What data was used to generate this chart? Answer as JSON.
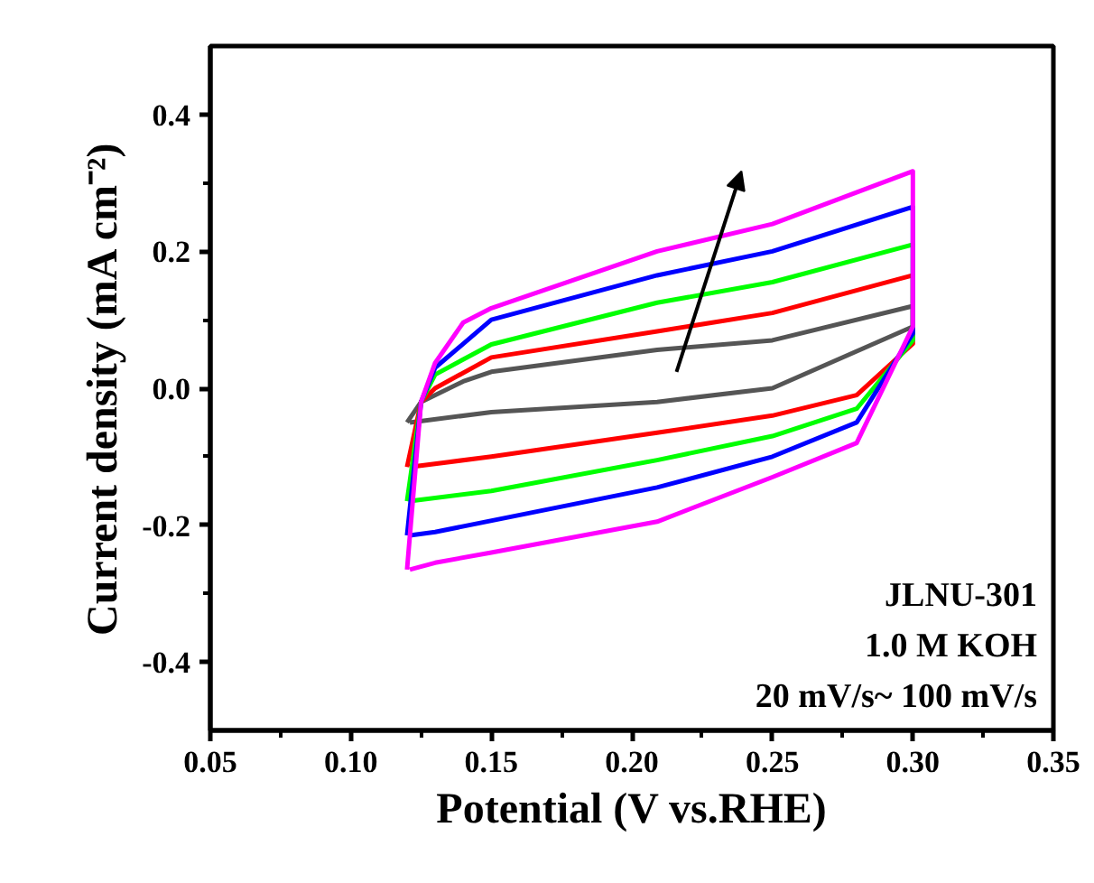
{
  "chart_data": {
    "type": "line",
    "xlabel": "Potential (V vs.RHE)",
    "ylabel": "Current density (mA cm⁻²)",
    "xlim": [
      0.05,
      0.35
    ],
    "ylim": [
      -0.5,
      0.5
    ],
    "xticks": [
      {
        "value": 0.05,
        "label": "0.05"
      },
      {
        "value": 0.1,
        "label": "0.10"
      },
      {
        "value": 0.15,
        "label": "0.15"
      },
      {
        "value": 0.2,
        "label": "0.20"
      },
      {
        "value": 0.25,
        "label": "0.25"
      },
      {
        "value": 0.3,
        "label": "0.30"
      },
      {
        "value": 0.35,
        "label": "0.35"
      }
    ],
    "yticks": [
      -0.4,
      -0.2,
      {
        "value": 0,
        "label": "0.0"
      },
      0.2,
      0.4
    ],
    "grid": false,
    "line_style": "solid",
    "series": [
      {
        "color": "#555555",
        "x": [
          0.12,
          0.125,
          0.14,
          0.15,
          0.209,
          0.25,
          0.3,
          0.3,
          0.25,
          0.209,
          0.15,
          0.121
        ],
        "values": [
          -0.05,
          -0.02,
          0.01,
          0.024,
          0.056,
          0.07,
          0.12,
          0.09,
          0.0,
          -0.02,
          -0.035,
          -0.05
        ]
      },
      {
        "color": "#ff0000",
        "x": [
          0.12,
          0.125,
          0.13,
          0.15,
          0.209,
          0.25,
          0.3,
          0.3,
          0.28,
          0.25,
          0.209,
          0.15,
          0.121
        ],
        "values": [
          -0.115,
          -0.02,
          0.0,
          0.045,
          0.083,
          0.11,
          0.165,
          0.065,
          -0.01,
          -0.04,
          -0.065,
          -0.1,
          -0.115
        ]
      },
      {
        "color": "#00ff00",
        "x": [
          0.12,
          0.125,
          0.13,
          0.15,
          0.209,
          0.25,
          0.3,
          0.3,
          0.28,
          0.25,
          0.209,
          0.15,
          0.121
        ],
        "values": [
          -0.165,
          -0.02,
          0.02,
          0.064,
          0.125,
          0.155,
          0.21,
          0.07,
          -0.03,
          -0.07,
          -0.105,
          -0.15,
          -0.165
        ]
      },
      {
        "color": "#0000ff",
        "x": [
          0.12,
          0.125,
          0.13,
          0.15,
          0.209,
          0.25,
          0.3,
          0.3,
          0.28,
          0.25,
          0.209,
          0.13,
          0.121
        ],
        "values": [
          -0.215,
          -0.02,
          0.03,
          0.1,
          0.165,
          0.2,
          0.265,
          0.08,
          -0.05,
          -0.1,
          -0.145,
          -0.21,
          -0.215
        ]
      },
      {
        "color": "#ff00ff",
        "x": [
          0.12,
          0.125,
          0.13,
          0.14,
          0.15,
          0.209,
          0.25,
          0.3,
          0.3,
          0.28,
          0.25,
          0.209,
          0.15,
          0.13,
          0.121
        ],
        "values": [
          -0.265,
          -0.02,
          0.037,
          0.096,
          0.117,
          0.2,
          0.24,
          0.317,
          0.09,
          -0.08,
          -0.13,
          -0.195,
          -0.24,
          -0.255,
          -0.265
        ]
      }
    ],
    "annotations": [
      "JLNU-301",
      "1.0 M KOH",
      "20 mV/s~ 100 mV/s"
    ]
  }
}
